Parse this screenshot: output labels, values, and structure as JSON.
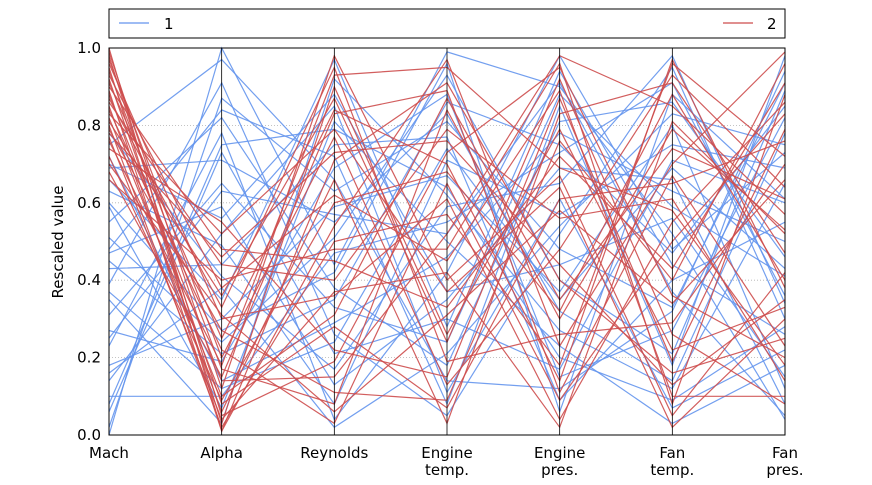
{
  "chart_data": {
    "type": "parallel-coordinates",
    "title": "",
    "ylabel": "Rescaled value",
    "ylim": [
      0,
      1
    ],
    "yticks": [
      "0.0",
      "0.2",
      "0.4",
      "0.6",
      "0.8",
      "1.0"
    ],
    "grid": "horizontal dotted",
    "legend_position": "top",
    "axes": [
      {
        "id": "mach",
        "label_lines": [
          "Mach"
        ]
      },
      {
        "id": "alpha",
        "label_lines": [
          "Alpha"
        ]
      },
      {
        "id": "reynolds",
        "label_lines": [
          "Reynolds"
        ]
      },
      {
        "id": "engine_temp",
        "label_lines": [
          "Engine",
          "temp."
        ]
      },
      {
        "id": "engine_pres",
        "label_lines": [
          "Engine",
          "pres."
        ]
      },
      {
        "id": "fan_temp",
        "label_lines": [
          "Fan",
          "temp."
        ]
      },
      {
        "id": "fan_pres",
        "label_lines": [
          "Fan",
          "pres."
        ]
      }
    ],
    "series": [
      {
        "name": "1",
        "color": "#6495ED",
        "lines": [
          [
            0.0,
            1.0,
            0.44,
            0.99,
            0.9,
            0.52,
            0.04
          ],
          [
            0.02,
            0.87,
            0.63,
            0.81,
            0.48,
            0.33,
            0.91
          ],
          [
            0.06,
            0.73,
            0.21,
            0.3,
            0.17,
            0.71,
            0.6
          ],
          [
            0.1,
            0.1,
            0.47,
            0.55,
            0.73,
            0.91,
            0.36
          ],
          [
            0.14,
            0.52,
            0.85,
            0.11,
            0.61,
            0.07,
            0.22
          ],
          [
            0.18,
            0.3,
            0.59,
            0.67,
            0.37,
            0.8,
            0.12
          ],
          [
            0.23,
            0.78,
            0.04,
            0.42,
            0.98,
            0.48,
            0.73
          ],
          [
            0.27,
            0.19,
            0.69,
            0.88,
            0.15,
            0.27,
            0.82
          ],
          [
            0.31,
            0.65,
            0.33,
            0.24,
            0.88,
            0.59,
            0.41
          ],
          [
            0.35,
            0.03,
            0.92,
            0.62,
            0.27,
            0.12,
            0.65
          ],
          [
            0.39,
            0.91,
            0.26,
            0.05,
            0.52,
            0.95,
            0.3
          ],
          [
            0.43,
            0.44,
            0.75,
            0.77,
            0.09,
            0.4,
            0.55
          ],
          [
            0.47,
            0.59,
            0.13,
            0.35,
            0.69,
            0.66,
            0.08
          ],
          [
            0.51,
            0.24,
            0.51,
            0.93,
            0.4,
            0.21,
            0.89
          ],
          [
            0.55,
            0.82,
            0.38,
            0.18,
            0.81,
            0.86,
            0.46
          ],
          [
            0.59,
            0.07,
            0.81,
            0.5,
            0.23,
            0.03,
            0.18
          ],
          [
            0.63,
            0.49,
            0.08,
            0.71,
            0.57,
            0.75,
            0.69
          ],
          [
            0.66,
            0.35,
            0.97,
            0.28,
            0.94,
            0.44,
            0.26
          ],
          [
            0.69,
            0.71,
            0.55,
            0.83,
            0.32,
            0.14,
            0.78
          ],
          [
            0.72,
            0.14,
            0.29,
            0.46,
            0.78,
            0.63,
            0.5
          ],
          [
            0.75,
            0.97,
            0.66,
            0.14,
            0.12,
            0.32,
            0.94
          ],
          [
            0.78,
            0.41,
            0.17,
            0.59,
            0.65,
            0.98,
            0.34
          ],
          [
            0.7,
            0.56,
            0.88,
            0.37,
            0.44,
            0.56,
            0.15
          ],
          [
            0.6,
            0.27,
            0.42,
            0.96,
            0.06,
            0.88,
            0.61
          ],
          [
            0.48,
            0.84,
            0.72,
            0.08,
            0.85,
            0.18,
            0.98
          ],
          [
            0.37,
            0.12,
            0.24,
            0.74,
            0.35,
            0.69,
            0.43
          ],
          [
            0.25,
            0.63,
            0.57,
            0.52,
            0.91,
            0.37,
            0.05
          ],
          [
            0.16,
            0.38,
            0.02,
            0.21,
            0.54,
            0.83,
            0.75
          ],
          [
            0.08,
            0.75,
            0.79,
            0.64,
            0.2,
            0.09,
            0.28
          ],
          [
            0.45,
            0.21,
            0.35,
            0.86,
            0.75,
            0.47,
            0.85
          ]
        ]
      },
      {
        "name": "2",
        "color": "#CD4C4C",
        "lines": [
          [
            1.0,
            0.01,
            0.54,
            0.97,
            0.23,
            0.7,
            0.99
          ],
          [
            0.99,
            0.12,
            0.98,
            0.4,
            0.67,
            0.05,
            0.42
          ],
          [
            0.98,
            0.05,
            0.19,
            0.73,
            0.95,
            0.36,
            0.2
          ],
          [
            0.97,
            0.2,
            0.77,
            0.13,
            0.48,
            0.93,
            0.64
          ],
          [
            0.96,
            0.3,
            0.36,
            0.61,
            0.04,
            0.55,
            0.86
          ],
          [
            0.95,
            0.03,
            0.9,
            0.26,
            0.79,
            0.22,
            0.33
          ],
          [
            0.94,
            0.17,
            0.08,
            0.84,
            0.3,
            0.79,
            0.53
          ],
          [
            0.93,
            0.38,
            0.62,
            0.45,
            0.89,
            0.1,
            0.1
          ],
          [
            0.92,
            0.08,
            0.28,
            0.07,
            0.61,
            0.65,
            0.76
          ],
          [
            0.91,
            0.25,
            0.84,
            0.7,
            0.14,
            0.97,
            0.38
          ],
          [
            0.9,
            0.48,
            0.45,
            0.33,
            0.72,
            0.43,
            0.91
          ],
          [
            0.89,
            0.01,
            0.71,
            0.91,
            0.4,
            0.16,
            0.25
          ],
          [
            0.88,
            0.14,
            0.15,
            0.52,
            0.98,
            0.85,
            0.57
          ],
          [
            0.87,
            0.33,
            0.95,
            0.19,
            0.26,
            0.29,
            0.7
          ],
          [
            0.86,
            0.44,
            0.4,
            0.79,
            0.56,
            0.61,
            0.14
          ],
          [
            0.85,
            0.06,
            0.66,
            0.03,
            0.83,
            0.91,
            0.47
          ],
          [
            0.84,
            0.22,
            0.03,
            0.65,
            0.09,
            0.5,
            0.83
          ],
          [
            0.83,
            0.52,
            0.79,
            0.37,
            0.64,
            0.02,
            0.3
          ],
          [
            0.82,
            0.1,
            0.31,
            0.87,
            0.35,
            0.74,
            0.61
          ],
          [
            0.81,
            0.36,
            0.87,
            0.24,
            0.92,
            0.26,
            0.08
          ],
          [
            0.8,
            0.02,
            0.5,
            0.57,
            0.18,
            0.96,
            0.72
          ],
          [
            0.79,
            0.27,
            0.11,
            0.09,
            0.76,
            0.4,
            0.96
          ],
          [
            0.78,
            0.46,
            0.73,
            0.76,
            0.44,
            0.13,
            0.35
          ],
          [
            0.77,
            0.04,
            0.37,
            0.42,
            0.02,
            0.81,
            0.52
          ],
          [
            0.76,
            0.18,
            0.93,
            0.95,
            0.69,
            0.58,
            0.18
          ],
          [
            0.74,
            0.55,
            0.22,
            0.15,
            0.87,
            0.19,
            0.79
          ],
          [
            0.72,
            0.09,
            0.6,
            0.68,
            0.32,
            0.88,
            0.4
          ],
          [
            0.7,
            0.31,
            0.06,
            0.31,
            0.58,
            0.34,
            0.66
          ],
          [
            0.68,
            0.15,
            0.83,
            0.89,
            0.11,
            0.67,
            0.23
          ],
          [
            0.66,
            0.4,
            0.48,
            0.48,
            0.96,
            0.08,
            0.88
          ]
        ]
      }
    ]
  }
}
